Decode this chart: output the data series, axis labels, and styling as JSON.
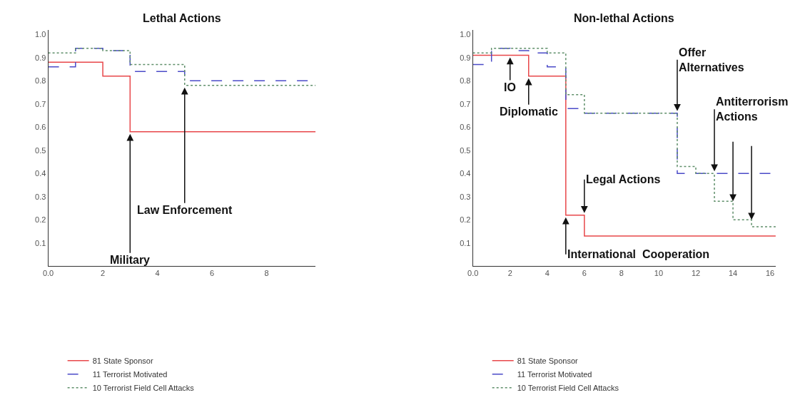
{
  "chart_data": [
    {
      "type": "step",
      "title": "Lethal Actions",
      "xlim": [
        0,
        9.8
      ],
      "ylim": [
        0,
        1.02
      ],
      "xticks": [
        {
          "value": 0,
          "label": "0.0"
        },
        2,
        4,
        6,
        8
      ],
      "yticks": [
        0.1,
        0.2,
        0.3,
        0.4,
        0.5,
        0.6,
        0.7,
        0.8,
        0.9,
        {
          "value": 1,
          "label": "1.0"
        }
      ],
      "legend": "bottom",
      "series": [
        {
          "name": "81 State Sponsor",
          "color": "#e8474a",
          "line_style": "solid",
          "x": [
            0,
            2,
            3,
            9.8
          ],
          "values": [
            0.88,
            0.82,
            0.58,
            0.58
          ]
        },
        {
          "name": "11 Terrorist Motivated",
          "color": "#4a4ac8",
          "line_style": "dashed",
          "x": [
            0,
            1,
            2,
            3,
            5,
            9.8
          ],
          "values": [
            0.86,
            0.94,
            0.93,
            0.84,
            0.8,
            0.8
          ]
        },
        {
          "name": "10 Terrorist Field Cell Attacks",
          "color": "#5f8f6a",
          "line_style": "dotted",
          "x": [
            0,
            1,
            2,
            3,
            5,
            9.8
          ],
          "values": [
            0.92,
            0.94,
            0.93,
            0.87,
            0.78,
            0.78
          ]
        }
      ],
      "annotations": [
        {
          "text": "Military",
          "x": 3,
          "y": 0.58
        },
        {
          "text": "Law Enforcement",
          "x": 5,
          "y": 0.78
        }
      ]
    },
    {
      "type": "step",
      "title": "Non-lethal Actions",
      "xlim": [
        0,
        16.3
      ],
      "ylim": [
        0,
        1.02
      ],
      "xticks": [
        {
          "value": 0,
          "label": "0.0"
        },
        2,
        4,
        6,
        8,
        10,
        12,
        14,
        16
      ],
      "yticks": [
        0.1,
        0.2,
        0.3,
        0.4,
        0.5,
        0.6,
        0.7,
        0.8,
        0.9,
        {
          "value": 1,
          "label": "1.0"
        }
      ],
      "legend": "bottom",
      "series": [
        {
          "name": "81 State Sponsor",
          "color": "#e8474a",
          "line_style": "solid",
          "x": [
            0,
            3,
            5,
            6,
            16.3
          ],
          "values": [
            0.91,
            0.82,
            0.22,
            0.13,
            0.13
          ]
        },
        {
          "name": "11 Terrorist Motivated",
          "color": "#4a4ac8",
          "line_style": "dashed",
          "x": [
            0,
            1,
            2,
            3,
            4,
            5,
            6,
            11,
            16.3
          ],
          "values": [
            0.87,
            0.94,
            0.93,
            0.92,
            0.86,
            0.68,
            0.66,
            0.4,
            0.4
          ]
        },
        {
          "name": "10 Terrorist Field Cell Attacks",
          "color": "#5f8f6a",
          "line_style": "dotted",
          "x": [
            0,
            1,
            4,
            5,
            6,
            11,
            12,
            13,
            14,
            15,
            16.3
          ],
          "values": [
            0.92,
            0.94,
            0.92,
            0.74,
            0.66,
            0.43,
            0.4,
            0.28,
            0.2,
            0.17,
            0.17
          ]
        }
      ],
      "annotations": [
        {
          "text": "IO",
          "x": 2,
          "y": 0.91
        },
        {
          "text": "Diplomatic",
          "x": 3,
          "y": 0.82
        },
        {
          "text": "Offer Alternatives",
          "x": 11,
          "y": 0.66
        },
        {
          "text": "Antiterrorism Actions",
          "x": 13,
          "y": 0.4
        },
        {
          "text": "Legal Actions",
          "x": 6,
          "y": 0.22
        },
        {
          "text": "International  Cooperation",
          "x": 5,
          "y": 0.22
        }
      ]
    }
  ]
}
